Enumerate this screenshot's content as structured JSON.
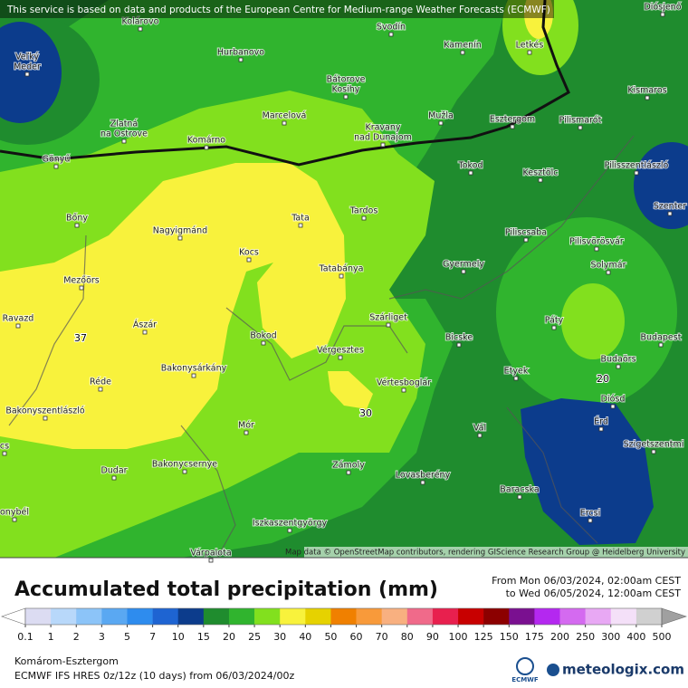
{
  "banner": "This service is based on data and products of the European Centre for Medium-range Weather Forecasts (ECMWF)",
  "attribution": "Map data © OpenStreetMap contributors, rendering GIScience Research Group @ Heidelberg University",
  "places": [
    [
      "Kolárovo"
    ],
    [
      "Svodín"
    ],
    [
      "Letkés"
    ],
    [
      "Diósjenő"
    ],
    [
      "Veľký",
      "Meder"
    ],
    [
      "Hurbanovo"
    ],
    [
      "Kamenín"
    ],
    [
      "Kismaros"
    ],
    [
      "Bátorove",
      "Kosihy"
    ],
    [
      "Marcelová"
    ],
    [
      "Mužla"
    ],
    [
      "Esztergom"
    ],
    [
      "Pilismarót"
    ],
    [
      "Zlatná",
      "na Ostrove"
    ],
    [
      "Kravany",
      "nad Dunajom"
    ],
    [
      "Komárno"
    ],
    [
      "Gönyű"
    ],
    [
      "Tokod"
    ],
    [
      "Kesztölc"
    ],
    [
      "Pilisszentlászló"
    ],
    [
      "Szenter"
    ],
    [
      "Bőny"
    ],
    [
      "Tardos"
    ],
    [
      "Tata"
    ],
    [
      "Nagyigmánd"
    ],
    [
      "Piliscsaba"
    ],
    [
      "Pilisvörösvár"
    ],
    [
      "Kocs"
    ],
    [
      "Tatabánya"
    ],
    [
      "Gyermely"
    ],
    [
      "Solymár"
    ],
    [
      "Mezőörs"
    ],
    [
      "Ravazd"
    ],
    [
      "Szárliget"
    ],
    [
      "Páty"
    ],
    [
      "Ászár"
    ],
    [
      "Bokod"
    ],
    [
      "Bicske"
    ],
    [
      "Budapest"
    ],
    [
      "Vérgesztes"
    ],
    [
      "Budaörs"
    ],
    [
      "Bakonysárkány"
    ],
    [
      "Etyek"
    ],
    [
      "Réde"
    ],
    [
      "Vértesboglár"
    ],
    [
      "Diósd"
    ],
    [
      "Bakonyszentlászló"
    ],
    [
      "Érd"
    ],
    [
      "Mór"
    ],
    [
      "Vál"
    ],
    [
      "Szigetszentmi"
    ],
    [
      "cs"
    ],
    [
      "Zámoly"
    ],
    [
      "Bakonycsernye"
    ],
    [
      "Dudar"
    ],
    [
      "Lovasberény"
    ],
    [
      "Baracska"
    ],
    [
      "onybél"
    ],
    [
      "Ercsi"
    ],
    [
      "Iszkaszentgyörgy"
    ],
    [
      "Várpalota"
    ]
  ],
  "contour_labels": [
    37,
    30,
    20
  ],
  "legend": {
    "title": "Accumulated total precipitation (mm)",
    "period": [
      "From Mon 06/03/2024, 02:00am CEST",
      "to Wed 06/05/2024, 12:00am CEST"
    ],
    "levels": [
      0.1,
      1,
      2,
      3,
      5,
      7,
      10,
      15,
      20,
      25,
      30,
      40,
      50,
      60,
      70,
      80,
      90,
      100,
      125,
      150,
      175,
      200,
      250,
      300,
      400,
      500
    ],
    "colors": [
      "#dcdcf2",
      "#b8d8fa",
      "#8cc4f8",
      "#5aa8f2",
      "#2e8cee",
      "#1e64d2",
      "#0c3c8c",
      "#1f8c2e",
      "#30b42e",
      "#82e01e",
      "#f8f23c",
      "#e6d200",
      "#f08000",
      "#f89a3a",
      "#f8b080",
      "#f06a8a",
      "#e8204e",
      "#c80000",
      "#8c0000",
      "#7a1090",
      "#b428f0",
      "#d46af0",
      "#e8a8f4",
      "#f4e0f8",
      "#d0d0d0"
    ],
    "under_color": "#ffffff",
    "over_color": "#a0a0a0"
  },
  "footer": {
    "region": "Komárom-Esztergom",
    "model": "ECMWF IFS HRES 0z/12z (10 days) from  06/03/2024/00z",
    "ecmwf_logo": "ECMWF",
    "brand": "meteologix.com"
  }
}
